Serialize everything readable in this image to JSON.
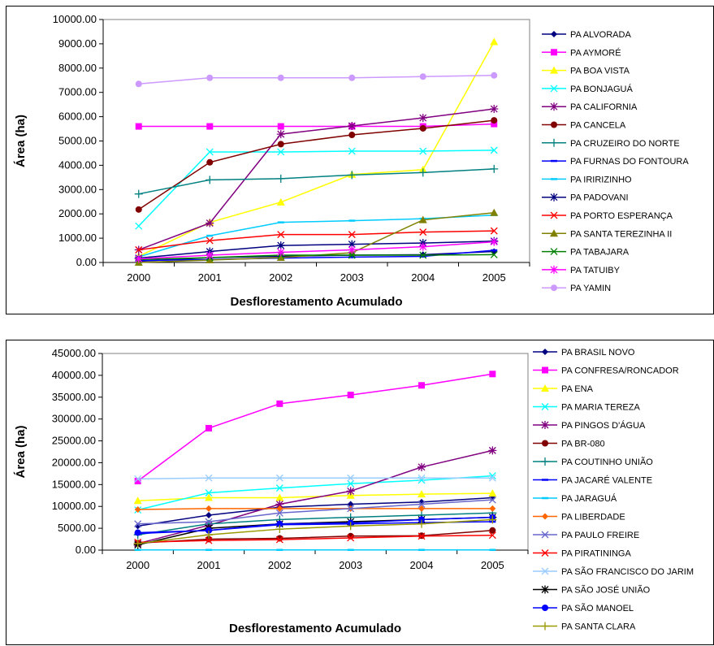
{
  "chart_data": [
    {
      "type": "line",
      "title": "",
      "xlabel": "Desflorestamento Acumulado",
      "ylabel": "Área (ha)",
      "categories": [
        "2000",
        "2001",
        "2002",
        "2003",
        "2004",
        "2005"
      ],
      "ylim": [
        0,
        10000
      ],
      "yticks": [
        "0.00",
        "1000.00",
        "2000.00",
        "3000.00",
        "4000.00",
        "5000.00",
        "6000.00",
        "7000.00",
        "8000.00",
        "9000.00",
        "10000.00"
      ],
      "grid": false,
      "legend_position": "right",
      "series": [
        {
          "name": "PA ALVORADA",
          "color": "#000080",
          "marker": "diamond",
          "values": [
            50,
            200,
            250,
            300,
            320,
            450
          ]
        },
        {
          "name": "PA AYMORÉ",
          "color": "#FF00FF",
          "marker": "square",
          "values": [
            5600,
            5600,
            5600,
            5600,
            5600,
            5700
          ]
        },
        {
          "name": "PA BOA VISTA",
          "color": "#FFFF00",
          "marker": "triangle",
          "values": [
            250,
            1650,
            2480,
            3620,
            3820,
            9080
          ]
        },
        {
          "name": "PA BONJAGUÁ",
          "color": "#00FFFF",
          "marker": "x",
          "values": [
            1500,
            4550,
            4550,
            4580,
            4580,
            4620
          ]
        },
        {
          "name": "PA CALIFORNIA",
          "color": "#800080",
          "marker": "star",
          "values": [
            520,
            1620,
            5280,
            5620,
            5950,
            6320
          ]
        },
        {
          "name": "PA CANCELA",
          "color": "#800000",
          "marker": "circle",
          "values": [
            2180,
            4120,
            4870,
            5250,
            5520,
            5850
          ]
        },
        {
          "name": "PA CRUZEIRO DO NORTE",
          "color": "#008080",
          "marker": "plus",
          "values": [
            2820,
            3400,
            3450,
            3600,
            3700,
            3850
          ]
        },
        {
          "name": "PA FURNAS DO FONTOURA",
          "color": "#0000FF",
          "marker": "dash",
          "values": [
            80,
            120,
            180,
            220,
            250,
            500
          ]
        },
        {
          "name": "PA IRIRIZINHO",
          "color": "#00CCFF",
          "marker": "dash",
          "values": [
            230,
            1100,
            1650,
            1720,
            1800,
            1950
          ]
        },
        {
          "name": "PA PADOVANI",
          "color": "#000080",
          "marker": "star",
          "values": [
            180,
            450,
            700,
            750,
            800,
            880
          ]
        },
        {
          "name": "PA PORTO ESPERANÇA",
          "color": "#FF0000",
          "marker": "x",
          "values": [
            520,
            900,
            1150,
            1150,
            1250,
            1300
          ]
        },
        {
          "name": "PA SANTA TEREZINHA II",
          "color": "#808000",
          "marker": "triangle",
          "values": [
            0,
            100,
            200,
            400,
            1750,
            2050
          ]
        },
        {
          "name": "PA TABAJARA",
          "color": "#008000",
          "marker": "x",
          "values": [
            120,
            200,
            300,
            300,
            300,
            320
          ]
        },
        {
          "name": "PA TATUIBY",
          "color": "#FF00FF",
          "marker": "star",
          "values": [
            150,
            300,
            420,
            520,
            650,
            850
          ]
        },
        {
          "name": "PA YAMIN",
          "color": "#CC99FF",
          "marker": "circle",
          "values": [
            7350,
            7600,
            7600,
            7600,
            7650,
            7700
          ]
        }
      ]
    },
    {
      "type": "line",
      "title": "",
      "xlabel": "Desflorestamento Acumulado",
      "ylabel": "Área (ha)",
      "categories": [
        "2000",
        "2001",
        "2002",
        "2003",
        "2004",
        "2005"
      ],
      "ylim": [
        0,
        45000
      ],
      "yticks": [
        "0.00",
        "5000.00",
        "10000.00",
        "15000.00",
        "20000.00",
        "25000.00",
        "30000.00",
        "35000.00",
        "40000.00",
        "45000.00"
      ],
      "grid": false,
      "legend_position": "right",
      "series": [
        {
          "name": "PA BRASIL NOVO",
          "color": "#000080",
          "marker": "diamond",
          "values": [
            5500,
            8000,
            9800,
            10500,
            11000,
            12000
          ]
        },
        {
          "name": "PA CONFRESA/RONCADOR",
          "color": "#FF00FF",
          "marker": "square",
          "values": [
            15800,
            27900,
            33500,
            35500,
            37700,
            40300
          ]
        },
        {
          "name": "PA ENA",
          "color": "#FFFF00",
          "marker": "triangle",
          "values": [
            11300,
            12000,
            12000,
            12500,
            12800,
            13000
          ]
        },
        {
          "name": "PA MARIA TEREZA",
          "color": "#00FFFF",
          "marker": "x",
          "values": [
            9200,
            13100,
            14200,
            15200,
            16000,
            17000
          ]
        },
        {
          "name": "PA PINGOS D'ÁGUA",
          "color": "#800080",
          "marker": "star",
          "values": [
            1500,
            5700,
            10500,
            13500,
            19000,
            22800
          ]
        },
        {
          "name": "PA BR-080",
          "color": "#800000",
          "marker": "circle",
          "values": [
            1600,
            2500,
            2700,
            3200,
            3300,
            4500
          ]
        },
        {
          "name": "PA COUTINHO UNIÃO",
          "color": "#008080",
          "marker": "plus",
          "values": [
            3500,
            6000,
            7000,
            7500,
            8000,
            8500
          ]
        },
        {
          "name": "PA JACARÉ VALENTE",
          "color": "#0000FF",
          "marker": "dash",
          "values": [
            3800,
            4500,
            5800,
            6000,
            6300,
            6500
          ]
        },
        {
          "name": "PA JARAGUÁ",
          "color": "#00CCFF",
          "marker": "dash",
          "values": [
            50,
            50,
            50,
            50,
            50,
            50
          ]
        },
        {
          "name": "PA LIBERDADE",
          "color": "#FF6600",
          "marker": "diamond",
          "values": [
            9300,
            9500,
            9500,
            9500,
            9500,
            9500
          ]
        },
        {
          "name": "PA PAULO FREIRE",
          "color": "#6666CC",
          "marker": "x",
          "values": [
            6000,
            6500,
            8500,
            9500,
            10500,
            11500
          ]
        },
        {
          "name": "PA PIRATININGA",
          "color": "#FF0000",
          "marker": "x",
          "values": [
            1800,
            2200,
            2400,
            2800,
            3200,
            3400
          ]
        },
        {
          "name": "PA SÃO FRANCISCO DO JARIM",
          "color": "#99CCFF",
          "marker": "x",
          "values": [
            16300,
            16500,
            16500,
            16500,
            16500,
            16500
          ]
        },
        {
          "name": "PA SÃO JOSÉ UNIÃO",
          "color": "#000000",
          "marker": "star",
          "values": [
            1200,
            5000,
            6000,
            6500,
            7000,
            7500
          ]
        },
        {
          "name": "PA SÃO MANOEL",
          "color": "#0000FF",
          "marker": "circle",
          "values": [
            4000,
            4500,
            6000,
            6200,
            7000,
            7500
          ]
        },
        {
          "name": "PA SANTA CLARA",
          "color": "#999900",
          "marker": "plus",
          "values": [
            1500,
            3500,
            4800,
            5500,
            6000,
            7000
          ]
        }
      ]
    }
  ]
}
